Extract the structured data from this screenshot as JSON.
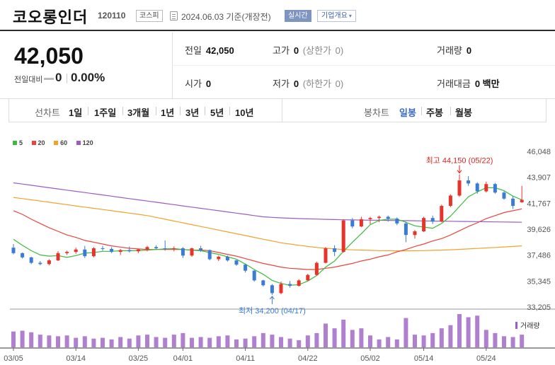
{
  "header": {
    "name": "코오롱인더",
    "code": "120110",
    "market": "코스피",
    "date": "2024.06.03",
    "date_note": "기준(개장전)",
    "realtime": "실시간",
    "overview": "기업개요",
    "overview_arrow": "▾"
  },
  "quote": {
    "price": "42,050",
    "change_label": "전일대비",
    "change": "0",
    "change_pct": "0.00%",
    "prev_close_label": "전일",
    "prev_close": "42,050",
    "high_label": "고가",
    "high": "0",
    "upper_limit_label": "(상한가",
    "upper_limit": "0)",
    "volume_label": "거래량",
    "volume": "0",
    "open_label": "시가",
    "open": "0",
    "low_label": "저가",
    "low": "0",
    "lower_limit_label": "(하한가",
    "lower_limit": "0)",
    "value_label": "거래대금",
    "value": "0 백만"
  },
  "tabs": {
    "line_label": "선차트",
    "line_periods": [
      "1일",
      "1주일",
      "3개월",
      "1년",
      "3년",
      "5년",
      "10년"
    ],
    "candle_label": "봉차트",
    "candle_periods": [
      "일봉",
      "주봉",
      "월봉"
    ],
    "active": "일봉"
  },
  "chart_data": {
    "type": "candlestick",
    "y_ticks": [
      "46,048",
      "43,907",
      "41,767",
      "39,626",
      "37,486",
      "35,345",
      "33,205"
    ],
    "ylim": [
      33205,
      46048
    ],
    "x_ticks": [
      "03/05",
      "03/14",
      "03/25",
      "04/01",
      "04/11",
      "04/22",
      "05/02",
      "05/14",
      "05/24"
    ],
    "x_tick_index": [
      0,
      7,
      14,
      19,
      26,
      33,
      40,
      46,
      53
    ],
    "legend": [
      "5",
      "20",
      "60",
      "120"
    ],
    "legend_colors": [
      "#3dbb3d",
      "#e8453c",
      "#f4a12c",
      "#9c5cc3"
    ],
    "volume_label": "거래량",
    "max_annotation": "최고 44,150 (05/22)",
    "min_annotation": "최저 34,200 (04/17)",
    "max_index": 50,
    "min_index": 29,
    "colors": {
      "up": "#e8332a",
      "down": "#3a7bd5"
    },
    "candles": [
      [
        38100,
        38400,
        37550,
        37650
      ],
      [
        37650,
        37700,
        37200,
        37300
      ],
      [
        37300,
        37350,
        36750,
        36850
      ],
      [
        36850,
        37000,
        36650,
        36750
      ],
      [
        36750,
        37150,
        36650,
        37050
      ],
      [
        37050,
        37800,
        37000,
        37650
      ],
      [
        37650,
        37850,
        37500,
        37750
      ],
      [
        37750,
        38100,
        37600,
        37950
      ],
      [
        37950,
        38250,
        37250,
        37400
      ],
      [
        37400,
        38150,
        37300,
        38050
      ],
      [
        38050,
        38250,
        37850,
        38000
      ],
      [
        38000,
        38150,
        37650,
        37750
      ],
      [
        37750,
        38000,
        37500,
        37900
      ],
      [
        37900,
        38200,
        37700,
        37800
      ],
      [
        37800,
        38000,
        37650,
        37950
      ],
      [
        37950,
        38250,
        37800,
        38150
      ],
      [
        38150,
        38300,
        37950,
        38050
      ],
      [
        38050,
        38700,
        37850,
        38000
      ],
      [
        38000,
        38200,
        37800,
        38050
      ],
      [
        38050,
        38150,
        37250,
        37450
      ],
      [
        37450,
        38100,
        37350,
        38050
      ],
      [
        38050,
        38250,
        37750,
        37900
      ],
      [
        37900,
        37950,
        37050,
        37150
      ],
      [
        37150,
        37450,
        37000,
        37350
      ],
      [
        37350,
        37450,
        36950,
        37050
      ],
      [
        37050,
        37100,
        36600,
        36700
      ],
      [
        36700,
        36750,
        36050,
        36200
      ],
      [
        36200,
        36250,
        35300,
        35400
      ],
      [
        35400,
        35450,
        34900,
        35000
      ],
      [
        35000,
        35100,
        34200,
        34350
      ],
      [
        34350,
        35300,
        34250,
        35100
      ],
      [
        35100,
        35350,
        34800,
        34950
      ],
      [
        34950,
        35500,
        34900,
        35400
      ],
      [
        35400,
        35950,
        35350,
        35850
      ],
      [
        35850,
        36950,
        35800,
        36850
      ],
      [
        36850,
        38150,
        36800,
        38050
      ],
      [
        38050,
        38300,
        37400,
        37750
      ],
      [
        37750,
        40450,
        37700,
        40350
      ],
      [
        40350,
        40550,
        39700,
        39850
      ],
      [
        39850,
        40650,
        39800,
        40450
      ],
      [
        40450,
        40650,
        40050,
        40550
      ],
      [
        40550,
        40750,
        40200,
        40650
      ],
      [
        40650,
        40750,
        40250,
        40500
      ],
      [
        40500,
        40600,
        39950,
        40100
      ],
      [
        40100,
        40250,
        38550,
        39150
      ],
      [
        39150,
        39550,
        38850,
        39450
      ],
      [
        39450,
        40650,
        39400,
        40550
      ],
      [
        40550,
        40750,
        40050,
        40250
      ],
      [
        40250,
        41650,
        40200,
        41550
      ],
      [
        41550,
        42500,
        41450,
        42400
      ],
      [
        42400,
        44150,
        42300,
        43650
      ],
      [
        43650,
        44000,
        43200,
        43400
      ],
      [
        43400,
        43500,
        42550,
        42750
      ],
      [
        42750,
        43550,
        42650,
        43350
      ],
      [
        43350,
        43450,
        42550,
        42650
      ],
      [
        42650,
        42750,
        42050,
        42150
      ],
      [
        42150,
        42350,
        41300,
        41550
      ],
      [
        41850,
        43200,
        41800,
        42050
      ]
    ],
    "ma5": [
      38800,
      38300,
      37850,
      37500,
      37400,
      37450,
      37300,
      37450,
      37650,
      37700,
      37800,
      37800,
      37850,
      37850,
      37850,
      37900,
      37950,
      38000,
      38020,
      37950,
      37900,
      37850,
      37700,
      37550,
      37350,
      37150,
      36750,
      36300,
      35900,
      35400,
      35150,
      35000,
      35050,
      35350,
      35800,
      36500,
      37000,
      37800,
      38550,
      39250,
      40000,
      40350,
      40450,
      40450,
      40200,
      39900,
      39800,
      39700,
      40100,
      40700,
      41500,
      42300,
      42700,
      43050,
      43050,
      42800,
      42350,
      42050
    ],
    "ma20": [
      41150,
      40850,
      40450,
      40100,
      39750,
      39450,
      39150,
      38950,
      38700,
      38550,
      38400,
      38250,
      38150,
      38050,
      38000,
      37950,
      37950,
      37950,
      37950,
      37950,
      37900,
      37900,
      37850,
      37700,
      37550,
      37400,
      37200,
      37000,
      36800,
      36650,
      36500,
      36400,
      36350,
      36300,
      36300,
      36400,
      36500,
      36650,
      36800,
      37000,
      37150,
      37350,
      37500,
      37750,
      37950,
      38200,
      38400,
      38650,
      38850,
      39150,
      39500,
      39850,
      40150,
      40500,
      40750,
      41000,
      41150,
      41300
    ],
    "ma60": [
      42250,
      42150,
      42050,
      41950,
      41850,
      41750,
      41650,
      41550,
      41450,
      41350,
      41250,
      41150,
      41050,
      40950,
      40850,
      40750,
      40600,
      40450,
      40300,
      40150,
      40000,
      39850,
      39700,
      39550,
      39400,
      39250,
      39100,
      38950,
      38800,
      38650,
      38500,
      38400,
      38300,
      38200,
      38120,
      38050,
      38000,
      37950,
      37920,
      37900,
      37880,
      37860,
      37850,
      37840,
      37840,
      37850,
      37860,
      37880,
      37900,
      37930,
      37960,
      38000,
      38040,
      38080,
      38120,
      38160,
      38200,
      38250
    ],
    "ma120": [
      43450,
      43350,
      43250,
      43150,
      43050,
      42950,
      42850,
      42750,
      42650,
      42550,
      42450,
      42350,
      42250,
      42150,
      42050,
      41950,
      41850,
      41750,
      41650,
      41550,
      41450,
      41350,
      41250,
      41150,
      41050,
      40950,
      40850,
      40750,
      40650,
      40600,
      40560,
      40530,
      40500,
      40480,
      40460,
      40440,
      40420,
      40400,
      40390,
      40380,
      40370,
      40360,
      40350,
      40340,
      40330,
      40320,
      40310,
      40300,
      40290,
      40280,
      40270,
      40260,
      40250,
      40240,
      40230,
      40220,
      40210,
      40200
    ],
    "volume": [
      20,
      21,
      19,
      16,
      15,
      14,
      15,
      12,
      14,
      11,
      12,
      10,
      13,
      11,
      15,
      16,
      13,
      12,
      16,
      18,
      12,
      13,
      12,
      14,
      15,
      10,
      11,
      14,
      18,
      16,
      13,
      11,
      9,
      15,
      18,
      30,
      24,
      35,
      22,
      24,
      15,
      10,
      13,
      10,
      37,
      16,
      15,
      18,
      24,
      28,
      42,
      38,
      40,
      22,
      18,
      14,
      13,
      16
    ]
  }
}
